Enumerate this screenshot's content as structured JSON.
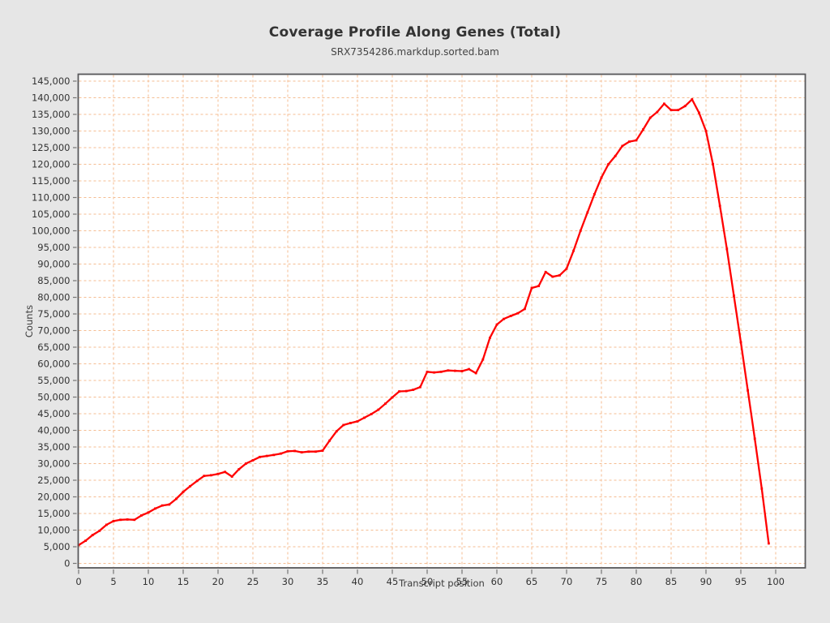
{
  "header": {
    "title": "Coverage Profile Along Genes (Total)",
    "subtitle": "SRX7354286.markdup.sorted.bam"
  },
  "colors": {
    "background": "#e6e6e6",
    "plot_background": "#ffffff",
    "grid": "#f5bd92",
    "plot_border": "#58585a",
    "tick": "#757575",
    "tick_label": "#333333",
    "series_line": "#ff0000",
    "title_text": "#333333"
  },
  "chart_data": {
    "type": "line",
    "title": "Coverage Profile Along Genes (Total)",
    "subtitle": "SRX7354286.markdup.sorted.bam",
    "xlabel": "Transcript position",
    "ylabel": "Counts",
    "xlim": [
      0,
      104
    ],
    "ylim": [
      -1500,
      147000
    ],
    "grid": true,
    "legend": "none",
    "x_ticks": [
      0,
      5,
      10,
      15,
      20,
      25,
      30,
      35,
      40,
      45,
      50,
      55,
      60,
      65,
      70,
      75,
      80,
      85,
      90,
      95,
      100
    ],
    "x_tick_labels": [
      "0",
      "5",
      "10",
      "15",
      "20",
      "25",
      "30",
      "35",
      "40",
      "45",
      "50",
      "55",
      "60",
      "65",
      "70",
      "75",
      "80",
      "85",
      "90",
      "95",
      "100"
    ],
    "y_ticks": [
      0,
      5000,
      10000,
      15000,
      20000,
      25000,
      30000,
      35000,
      40000,
      45000,
      50000,
      55000,
      60000,
      65000,
      70000,
      75000,
      80000,
      85000,
      90000,
      95000,
      100000,
      105000,
      110000,
      115000,
      120000,
      125000,
      130000,
      135000,
      140000,
      145000
    ],
    "y_tick_labels": [
      "0",
      "5,000",
      "10,000",
      "15,000",
      "20,000",
      "25,000",
      "30,000",
      "35,000",
      "40,000",
      "45,000",
      "50,000",
      "55,000",
      "60,000",
      "65,000",
      "70,000",
      "75,000",
      "80,000",
      "85,000",
      "90,000",
      "95,000",
      "100,000",
      "105,000",
      "110,000",
      "115,000",
      "120,000",
      "125,000",
      "130,000",
      "135,000",
      "140,000",
      "145,000"
    ],
    "series": [
      {
        "name": "SRX7354286.markdup.sorted.bam",
        "color": "#ff0000",
        "x": [
          0,
          1,
          2,
          3,
          4,
          5,
          6,
          7,
          8,
          9,
          10,
          11,
          12,
          13,
          14,
          15,
          16,
          17,
          18,
          19,
          20,
          21,
          22,
          23,
          24,
          25,
          26,
          27,
          28,
          29,
          30,
          31,
          32,
          33,
          34,
          35,
          36,
          37,
          38,
          39,
          40,
          41,
          42,
          43,
          44,
          45,
          46,
          47,
          48,
          49,
          50,
          51,
          52,
          53,
          54,
          55,
          56,
          57,
          58,
          59,
          60,
          61,
          62,
          63,
          64,
          65,
          66,
          67,
          68,
          69,
          70,
          71,
          72,
          73,
          74,
          75,
          76,
          77,
          78,
          79,
          80,
          81,
          82,
          83,
          84,
          85,
          86,
          87,
          88,
          89,
          90,
          91,
          92,
          93,
          94,
          95,
          96,
          97,
          98,
          99
        ],
        "values": [
          5500,
          6800,
          8500,
          9800,
          11600,
          12700,
          13100,
          13200,
          13100,
          14400,
          15300,
          16500,
          17400,
          17700,
          19400,
          21500,
          23200,
          24800,
          26300,
          26500,
          26900,
          27500,
          26100,
          28300,
          30000,
          31000,
          32000,
          32300,
          32600,
          33000,
          33700,
          33800,
          33400,
          33600,
          33600,
          33900,
          36900,
          39700,
          41600,
          42200,
          42700,
          43800,
          44900,
          46200,
          48000,
          49900,
          51700,
          51800,
          52200,
          53000,
          57600,
          57400,
          57600,
          58000,
          57900,
          57800,
          58400,
          57200,
          61300,
          67800,
          71800,
          73500,
          74400,
          75200,
          76500,
          82800,
          83400,
          87600,
          86200,
          86600,
          88600,
          94000,
          100000,
          105500,
          111000,
          116000,
          120000,
          122500,
          125500,
          126800,
          127200,
          130500,
          134000,
          135700,
          138200,
          136300,
          136300,
          137500,
          139500,
          135500,
          130000,
          120000,
          107500,
          94500,
          80500,
          66500,
          52000,
          37500,
          22500,
          6000
        ]
      }
    ]
  }
}
